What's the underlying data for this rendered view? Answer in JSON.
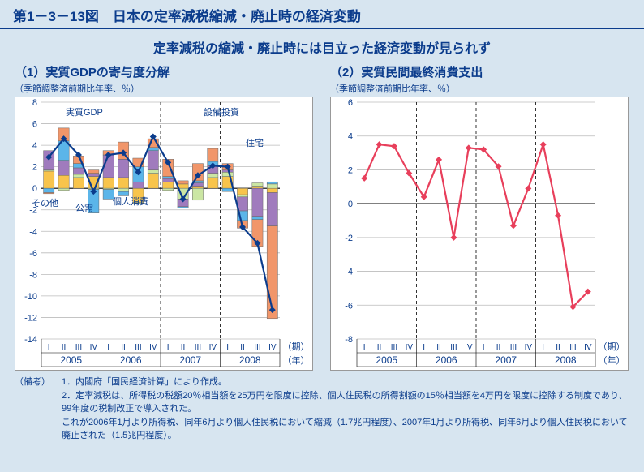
{
  "title": "第1－3－13図　日本の定率減税縮減・廃止時の経済変動",
  "subtitle": "定率減税の縮減・廃止時には目立った経済変動が見られず",
  "axis": {
    "period_label": "（期）",
    "year_label": "（年）",
    "quarters": [
      "I",
      "II",
      "III",
      "IV"
    ],
    "years": [
      "2005",
      "2006",
      "2007",
      "2008"
    ]
  },
  "chart1": {
    "title": "（1）実質GDPの寄与度分解",
    "sub": "（季節調整済前期比年率、％）",
    "ylabel": "",
    "ylim": [
      -14,
      8
    ],
    "ytick_step": 2,
    "yticks": [
      8,
      6,
      4,
      2,
      0,
      -2,
      -4,
      -6,
      -8,
      -10,
      -12,
      -14
    ],
    "categories_label": [
      "その他",
      "公需",
      "個人消費",
      "実質GDP",
      "設備投資",
      "住宅"
    ],
    "colors": {
      "private_consumption": "#f8c44c",
      "housing": "#cbe6a3",
      "equipment": "#a07bbd",
      "public": "#5bb5e9",
      "other": "#f1966a",
      "gdp_line": "#0b3c8c",
      "grid": "#bbbbbb",
      "axis": "#000000",
      "bar_border": "#666666"
    },
    "stacked": [
      {
        "pc": 1.6,
        "hs": 0.1,
        "eq": 1.8,
        "pub": -0.4,
        "oth": -0.1
      },
      {
        "pc": 1.2,
        "hs": -0.2,
        "eq": 1.4,
        "pub": 1.8,
        "oth": 1.2
      },
      {
        "pc": 1.0,
        "hs": 0.3,
        "eq": 0.6,
        "pub": 0.4,
        "oth": 0.7
      },
      {
        "pc": 1.1,
        "hs": -0.1,
        "eq": 0.3,
        "pub": -2.2,
        "oth": 0.3
      },
      {
        "pc": 1.0,
        "hs": -0.1,
        "eq": 2.1,
        "pub": -0.9,
        "oth": 0.4
      },
      {
        "pc": 1.0,
        "hs": -0.3,
        "eq": 1.7,
        "pub": -0.4,
        "oth": 1.6
      },
      {
        "pc": -1.3,
        "hs": -0.1,
        "eq": 0.6,
        "pub": 1.4,
        "oth": 0.8
      },
      {
        "pc": 1.4,
        "hs": 0.3,
        "eq": 1.8,
        "pub": 0.3,
        "oth": 0.8
      },
      {
        "pc": 0.6,
        "hs": -0.2,
        "eq": 0.3,
        "pub": 0.2,
        "oth": 1.6
      },
      {
        "pc": 0.4,
        "hs": -1.0,
        "eq": -0.7,
        "pub": -0.1,
        "oth": 0.3
      },
      {
        "pc": 0.2,
        "hs": -1.1,
        "eq": 0.3,
        "pub": 0.2,
        "oth": 1.6
      },
      {
        "pc": 1.0,
        "hs": 0.4,
        "eq": 0.7,
        "pub": 0.4,
        "oth": 1.2
      },
      {
        "pc": 1.1,
        "hs": 0.4,
        "eq": 0.2,
        "pub": -0.3,
        "oth": 0.6
      },
      {
        "pc": -0.6,
        "hs": -0.2,
        "eq": -1.3,
        "pub": -0.9,
        "oth": -0.7
      },
      {
        "pc": 0.2,
        "hs": 0.3,
        "eq": -2.6,
        "pub": -0.3,
        "oth": -2.5
      },
      {
        "pc": -0.4,
        "hs": 0.4,
        "eq": -3.1,
        "pub": 0.2,
        "oth": -8.6
      }
    ],
    "gdp_line": [
      2.9,
      4.6,
      3.1,
      -0.3,
      3.1,
      3.3,
      1.5,
      4.8,
      2.4,
      -1.0,
      1.2,
      2.1,
      2.0,
      -3.6,
      -5.1,
      -11.3
    ]
  },
  "chart2": {
    "title": "（2）実質民間最終消費支出",
    "sub": "（季節調整済前期比年率、％）",
    "ylim": [
      -8,
      6
    ],
    "ytick_step": 2,
    "yticks": [
      6,
      4,
      2,
      0,
      -2,
      -4,
      -6,
      -8
    ],
    "colors": {
      "line": "#e83f5b",
      "grid": "#bbbbbb",
      "axis": "#000000"
    },
    "data": [
      1.5,
      3.5,
      3.4,
      1.8,
      0.4,
      2.6,
      -2.0,
      3.3,
      3.2,
      2.2,
      -1.3,
      0.9,
      3.5,
      -0.7,
      -6.1,
      -5.2
    ]
  },
  "notes": {
    "label": "（備考）",
    "n1label": "1．",
    "n1": "内閣府「国民経済計算」により作成。",
    "n2label": "2．",
    "n2a": "定率減税は、所得税の税額20％相当額を25万円を限度に控除、個人住民税の所得割額の15％相当額を4万円を限度に控除する制度であり、99年度の税制改正で導入された。",
    "n2b": "これが2006年1月より所得税、同年6月より個人住民税において縮減（1.7兆円程度）、2007年1月より所得税、同年6月より個人住民税において廃止された（1.5兆円程度）。"
  }
}
